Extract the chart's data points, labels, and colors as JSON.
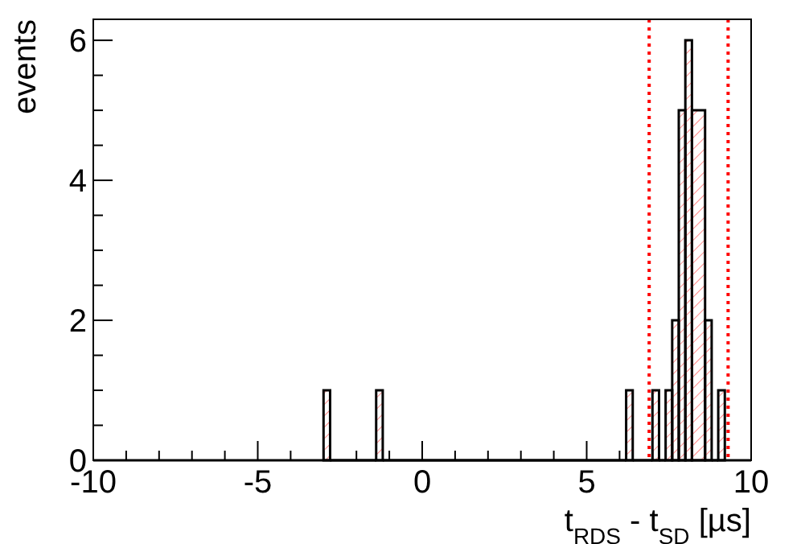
{
  "chart_data": {
    "type": "histogram",
    "xlabel": "t$_{RDS}$ - t$_{SD}$ [µs]",
    "ylabel": "events",
    "bins": [
      -3,
      -2.8,
      -1.4,
      -1.2,
      6.2,
      6.4,
      7.0,
      7.2,
      7.4,
      7.6,
      7.8,
      8.0,
      8.2,
      8.6,
      8.8,
      9.0,
      9.2
    ],
    "values": [
      1,
      0,
      1,
      0,
      1,
      0,
      1,
      0,
      1,
      2,
      5,
      6,
      5,
      2,
      0,
      1
    ],
    "color": "#000000",
    "xlim": [
      -10,
      10
    ],
    "xticks": [
      -10,
      {
        "value": -9,
        "label": null
      },
      {
        "value": -8,
        "label": null
      },
      {
        "value": -7,
        "label": null
      },
      {
        "value": -6,
        "label": null
      },
      -5,
      {
        "value": -4,
        "label": null
      },
      {
        "value": -3,
        "label": null
      },
      {
        "value": -2,
        "label": null
      },
      {
        "value": -1,
        "label": null
      },
      0,
      {
        "value": 1,
        "label": null
      },
      {
        "value": 2,
        "label": null
      },
      {
        "value": 3,
        "label": null
      },
      {
        "value": 4,
        "label": null
      },
      5,
      {
        "value": 6,
        "label": null
      },
      {
        "value": 7,
        "label": null
      },
      {
        "value": 8,
        "label": null
      },
      {
        "value": 9,
        "label": null
      },
      10
    ],
    "ylim": [
      0,
      6.3
    ],
    "yticks": [
      0,
      {
        "value": 0.5,
        "label": null
      },
      {
        "value": 1,
        "label": null
      },
      {
        "value": 1.5,
        "label": null
      },
      2,
      {
        "value": 2.5,
        "label": null
      },
      {
        "value": 3,
        "label": null
      },
      {
        "value": 3.5,
        "label": null
      },
      4,
      {
        "value": 4.5,
        "label": null
      },
      {
        "value": 5,
        "label": null
      },
      {
        "value": 5.5,
        "label": null
      },
      6
    ],
    "ref_lines": [
      {
        "axis": "x",
        "value": 6.9,
        "color": "#ff0000",
        "line_style": "dotted"
      },
      {
        "axis": "x",
        "value": 9.3,
        "color": "#ff0000",
        "line_style": "dotted"
      }
    ],
    "grid": false
  }
}
